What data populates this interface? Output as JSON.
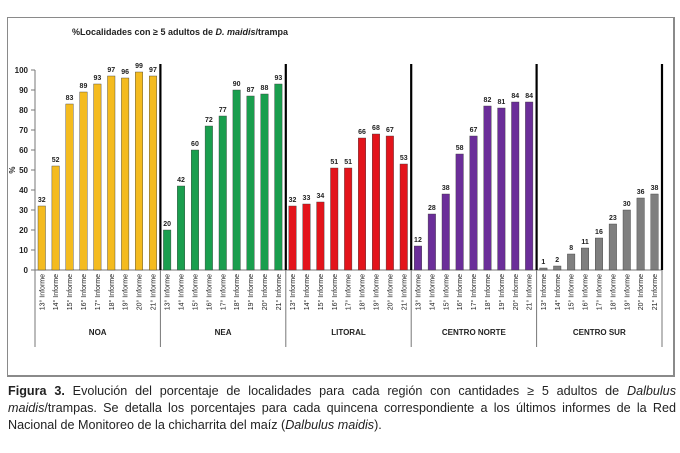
{
  "chart_data": {
    "type": "bar",
    "title_parts": [
      {
        "text": "%Localidades con ≥ 5 adultos de ",
        "italic": false
      },
      {
        "text": "D. maidis",
        "italic": true
      },
      {
        "text": "/trampa",
        "italic": false
      }
    ],
    "xlabel": "",
    "ylabel": "%",
    "ylim": [
      0,
      100
    ],
    "yticks": [
      0,
      10,
      20,
      30,
      40,
      50,
      60,
      70,
      80,
      90,
      100
    ],
    "grid": false,
    "legend": "none",
    "categories": [
      "13° Informe",
      "14° Informe",
      "15° Informe",
      "16° Informe",
      "17° Informe",
      "18° Informe",
      "19° Informe",
      "20° Informe",
      "21° Informe"
    ],
    "series": [
      {
        "name": "NOA",
        "color": "#F4BB1F",
        "values": [
          32,
          52,
          83,
          89,
          93,
          97,
          96,
          99,
          97
        ]
      },
      {
        "name": "NEA",
        "color": "#1A9E4E",
        "values": [
          20,
          42,
          60,
          72,
          77,
          90,
          87,
          88,
          93
        ]
      },
      {
        "name": "LITORAL",
        "color": "#E3141B",
        "values": [
          32,
          33,
          34,
          51,
          51,
          66,
          68,
          67,
          53
        ]
      },
      {
        "name": "CENTRO NORTE",
        "color": "#6B2E99",
        "values": [
          12,
          28,
          38,
          58,
          67,
          82,
          81,
          84,
          84
        ]
      },
      {
        "name": "CENTRO SUR",
        "color": "#7F7F7F",
        "values": [
          1,
          2,
          8,
          11,
          16,
          23,
          30,
          36,
          38
        ]
      }
    ]
  },
  "caption": {
    "label": "Figura 3.",
    "parts": [
      {
        "text": " Evolución del porcentaje de localidades para cada región con cantidades ≥ 5 adultos de ",
        "italic": false
      },
      {
        "text": "Dalbulus maidis",
        "italic": true
      },
      {
        "text": "/trampas. Se detalla los porcentajes para cada quincena correspondiente a los últimos informes de la Red Nacional de Monitoreo de la chicharrita del maíz (",
        "italic": false
      },
      {
        "text": "Dalbulus maidis",
        "italic": true
      },
      {
        "text": ").",
        "italic": false
      }
    ]
  }
}
